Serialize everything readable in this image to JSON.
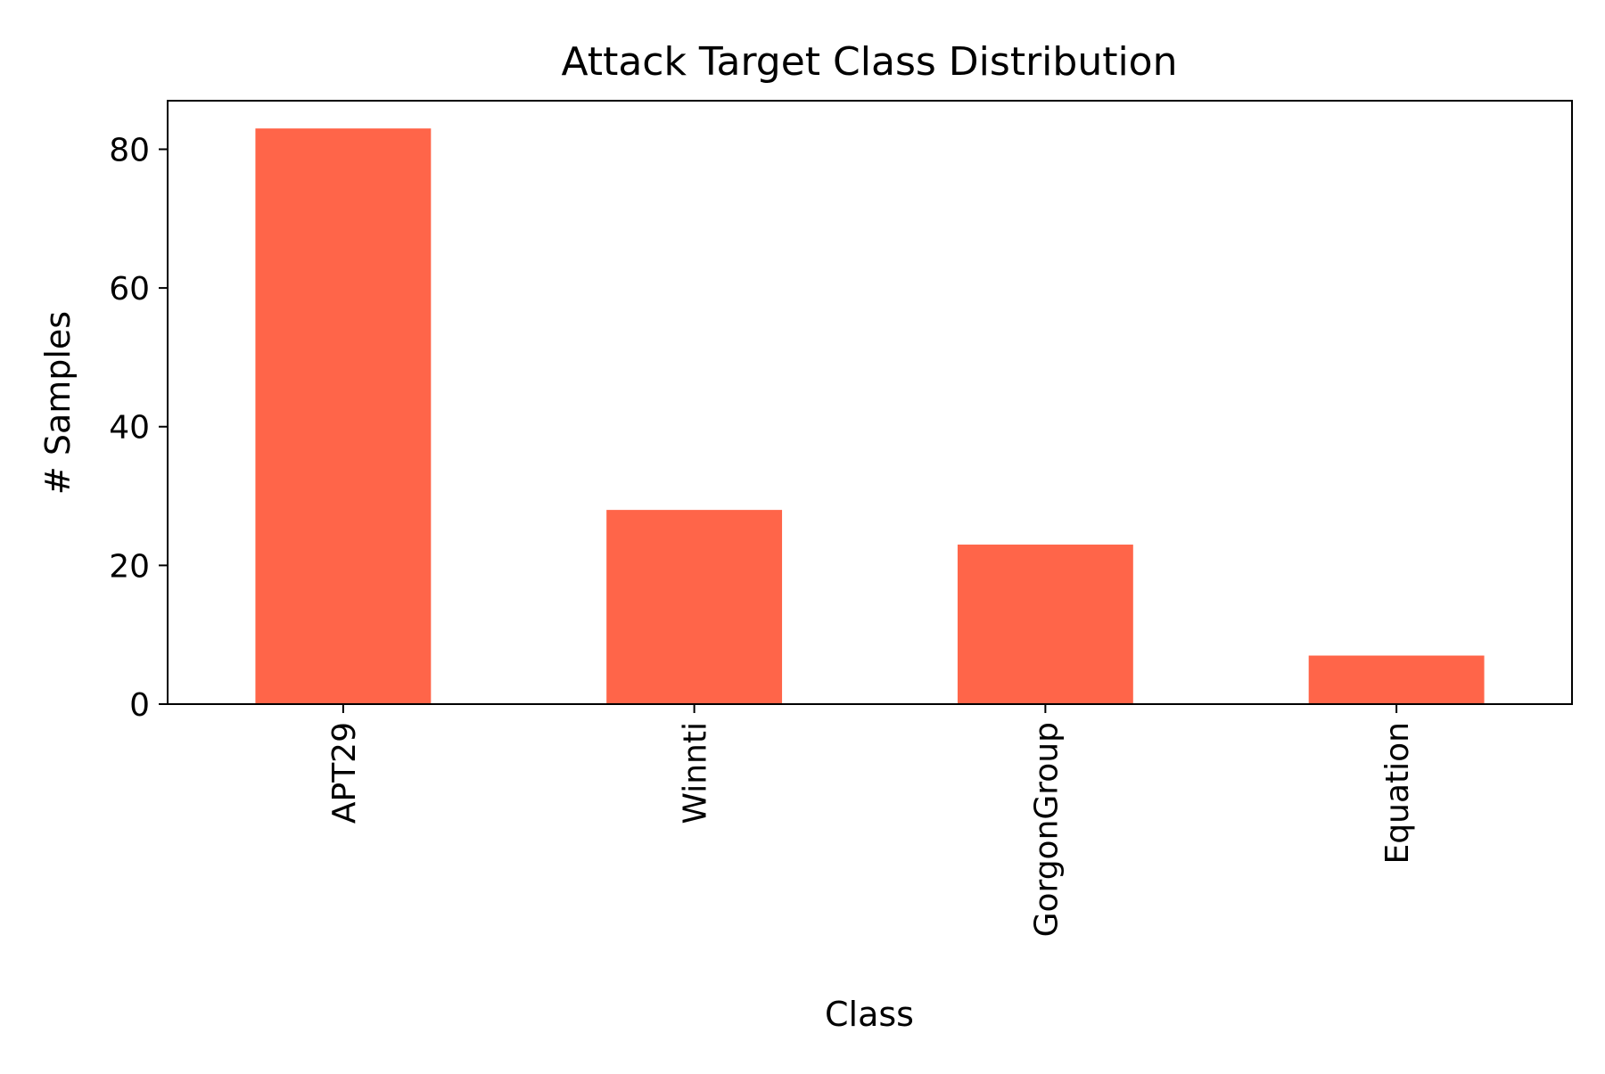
{
  "chart_data": {
    "type": "bar",
    "title": "Attack Target Class Distribution",
    "xlabel": "Class",
    "ylabel": "# Samples",
    "categories": [
      "APT29",
      "Winnti",
      "GorgonGroup",
      "Equation"
    ],
    "values": [
      83,
      28,
      23,
      7
    ],
    "ylim": [
      0,
      87
    ],
    "yticks": [
      0,
      20,
      40,
      60,
      80
    ],
    "bar_color": "#ff6549",
    "grid": false,
    "legend": "none",
    "xtick_rotation": "vertical"
  }
}
